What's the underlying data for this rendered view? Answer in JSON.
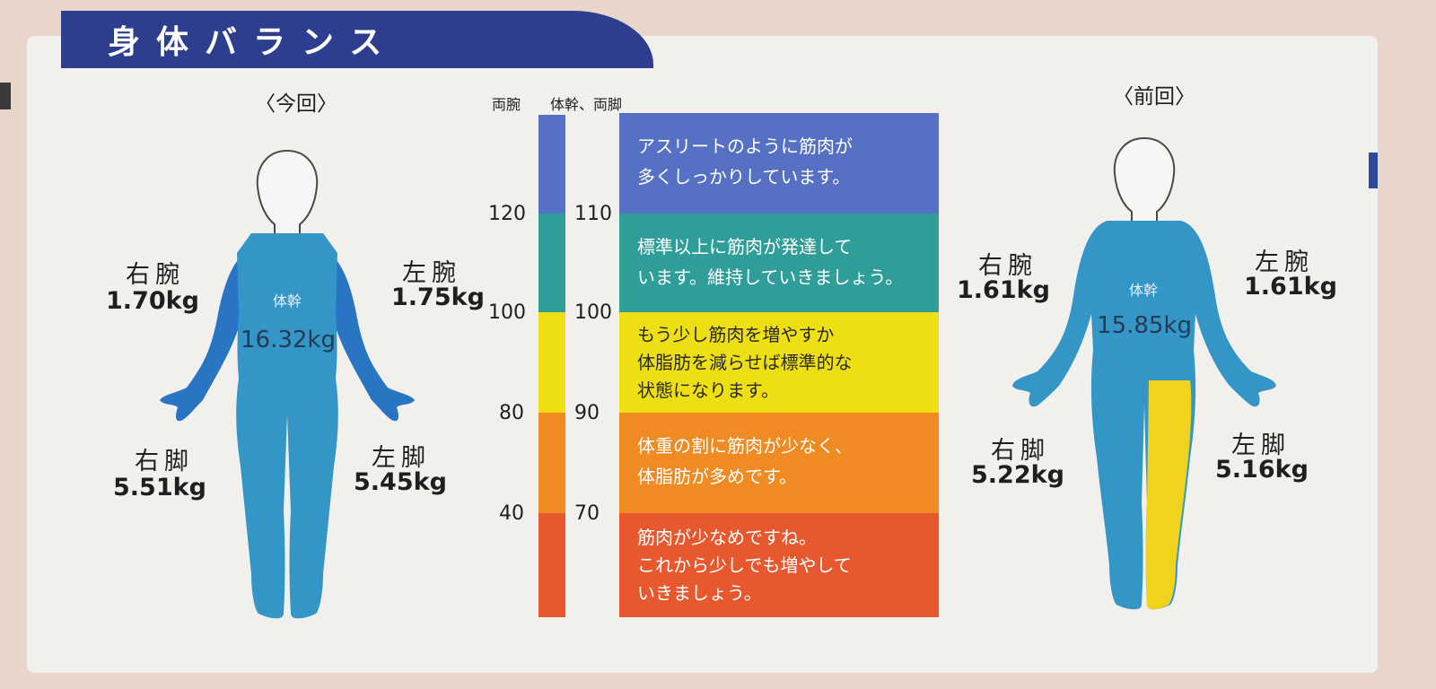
{
  "title": "身体バランス",
  "current": {
    "heading": "〈今回〉",
    "right_arm": {
      "label": "右腕",
      "value": "1.70kg"
    },
    "left_arm": {
      "label": "左腕",
      "value": "1.75kg"
    },
    "trunk": {
      "label": "体幹",
      "value": "16.32kg"
    },
    "right_leg": {
      "label": "右脚",
      "value": "5.51kg"
    },
    "left_leg": {
      "label": "左脚",
      "value": "5.45kg"
    }
  },
  "previous": {
    "heading": "〈前回〉",
    "right_arm": {
      "label": "右腕",
      "value": "1.61kg"
    },
    "left_arm": {
      "label": "左腕",
      "value": "1.61kg"
    },
    "trunk": {
      "label": "体幹",
      "value": "15.85kg"
    },
    "right_leg": {
      "label": "右脚",
      "value": "5.22kg"
    },
    "left_leg": {
      "label": "左脚",
      "value": "5.16kg"
    }
  },
  "scale": {
    "arms_header": "両腕",
    "trunk_legs_header": "体幹、両脚",
    "arms_ticks": [
      "120",
      "100",
      "80",
      "40"
    ],
    "trunk_legs_ticks": [
      "110",
      "100",
      "90",
      "70"
    ]
  },
  "levels": [
    {
      "color": "#5671c4",
      "lines": [
        "アスリートのように筋肉が",
        "多くしっかりしています。"
      ]
    },
    {
      "color": "#2f9e98",
      "lines": [
        "標準以上に筋肉が発達して",
        "います。維持していきましょう。"
      ]
    },
    {
      "color": "#eddf12",
      "lines": [
        "もう少し筋肉を増やすか",
        "体脂肪を減らせば標準的な",
        "状態になります。"
      ]
    },
    {
      "color": "#ef8b22",
      "lines": [
        "体重の割に筋肉が少なく、",
        "体脂肪が多めです。"
      ]
    },
    {
      "color": "#e8582e",
      "lines": [
        "筋肉が少なめですね。",
        "これから少しでも増やして",
        "いきましょう。"
      ]
    }
  ],
  "colors": {
    "title_band": "#2e3e8e",
    "body_teal": "#3496c6",
    "arm_blue": "#2a74c4",
    "leg_yellow": "#f0d31c"
  }
}
